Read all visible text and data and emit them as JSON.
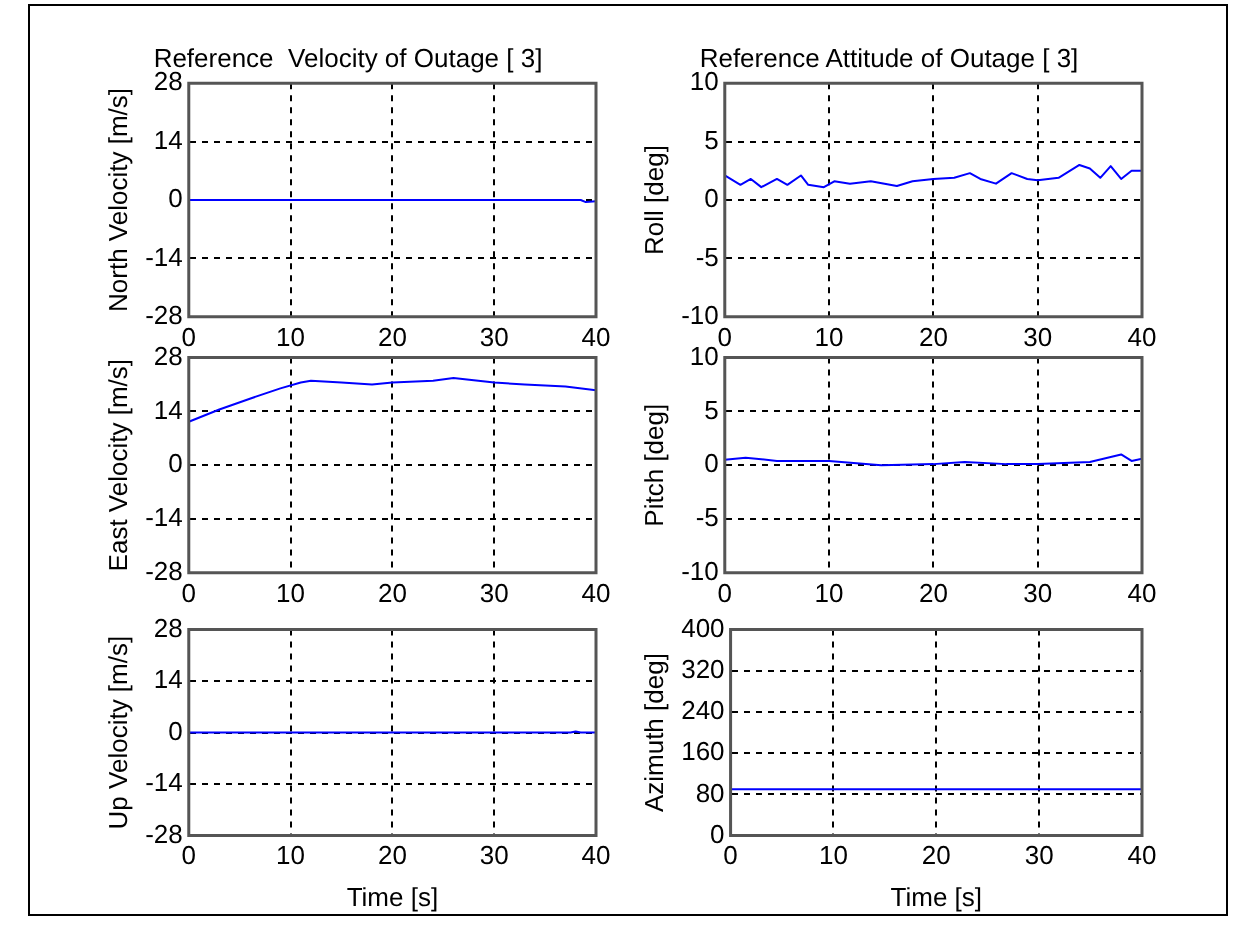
{
  "chart_data": [
    {
      "type": "line",
      "title": "Reference  Velocity of Outage [ 3]",
      "ylabel": "North Velocity [m/s]",
      "x": [
        0,
        10,
        20,
        30,
        38.5,
        39,
        40
      ],
      "series": [
        {
          "color": "#0000ff",
          "values": [
            0,
            0,
            0,
            0,
            0,
            -0.5,
            -0.3
          ]
        }
      ],
      "xlim": [
        0,
        40
      ],
      "xticks": [
        0,
        10,
        20,
        30,
        40
      ],
      "ylim": [
        -28,
        28
      ],
      "yticks": [
        -28,
        -14,
        0,
        14,
        28
      ],
      "grid": true
    },
    {
      "type": "line",
      "title": "Reference Attitude of Outage [ 3]",
      "ylabel": "Roll [deg]",
      "x": [
        0,
        1.5,
        2.5,
        3.5,
        5,
        6,
        7.3,
        8,
        9.5,
        10.5,
        12,
        14,
        16.5,
        18,
        20,
        22,
        23.5,
        24.5,
        26,
        27.5,
        29,
        30,
        32,
        34,
        35,
        36,
        37,
        38,
        39,
        40
      ],
      "series": [
        {
          "color": "#0000ff",
          "values": [
            2.1,
            1.3,
            1.8,
            1.1,
            1.8,
            1.3,
            2.1,
            1.3,
            1.1,
            1.6,
            1.4,
            1.6,
            1.2,
            1.6,
            1.8,
            1.9,
            2.3,
            1.8,
            1.4,
            2.3,
            1.8,
            1.7,
            1.9,
            3.0,
            2.7,
            1.9,
            2.9,
            1.8,
            2.5,
            2.5
          ]
        }
      ],
      "xlim": [
        0,
        40
      ],
      "xticks": [
        0,
        10,
        20,
        30,
        40
      ],
      "ylim": [
        -10,
        10
      ],
      "yticks": [
        -10,
        -5,
        0,
        5,
        10
      ],
      "grid": true
    },
    {
      "type": "line",
      "ylabel": "East Velocity [m/s]",
      "x": [
        0,
        3,
        6,
        9,
        11,
        12,
        15,
        18,
        20,
        24,
        26,
        30,
        33,
        37,
        40
      ],
      "series": [
        {
          "color": "#0000ff",
          "values": [
            11.3,
            14.5,
            17.3,
            20,
            21.5,
            22,
            21.5,
            21,
            21.5,
            22,
            22.7,
            21.5,
            21,
            20.5,
            19.5
          ]
        }
      ],
      "xlim": [
        0,
        40
      ],
      "xticks": [
        0,
        10,
        20,
        30,
        40
      ],
      "ylim": [
        -28,
        28
      ],
      "yticks": [
        -28,
        -14,
        0,
        14,
        28
      ],
      "grid": true
    },
    {
      "type": "line",
      "ylabel": "Pitch [deg]",
      "x": [
        0,
        2,
        5,
        10,
        15,
        20,
        23,
        27,
        30,
        35,
        38,
        39,
        40
      ],
      "series": [
        {
          "color": "#0000ff",
          "values": [
            0.5,
            0.7,
            0.4,
            0.4,
            0,
            0.1,
            0.3,
            0.1,
            0.1,
            0.3,
            1.0,
            0.4,
            0.6
          ]
        }
      ],
      "xlim": [
        0,
        40
      ],
      "xticks": [
        0,
        10,
        20,
        30,
        40
      ],
      "ylim": [
        -10,
        10
      ],
      "yticks": [
        -10,
        -5,
        0,
        5,
        10
      ],
      "grid": true
    },
    {
      "type": "line",
      "xlabel": "Time [s]",
      "ylabel": "Up Velocity [m/s]",
      "x": [
        0,
        10,
        20,
        30,
        37.5,
        38,
        38.5,
        40
      ],
      "series": [
        {
          "color": "#0000ff",
          "values": [
            0,
            0,
            0,
            0,
            0,
            0.3,
            0,
            0
          ]
        }
      ],
      "xlim": [
        0,
        40
      ],
      "xticks": [
        0,
        10,
        20,
        30,
        40
      ],
      "ylim": [
        -28,
        28
      ],
      "yticks": [
        -28,
        -14,
        0,
        14,
        28
      ],
      "grid": true
    },
    {
      "type": "line",
      "xlabel": "Time [s]",
      "ylabel": "Azimuth [deg]",
      "x": [
        0,
        10,
        20,
        30,
        40
      ],
      "series": [
        {
          "color": "#0000ff",
          "values": [
            90,
            90,
            90,
            90,
            90
          ]
        }
      ],
      "xlim": [
        0,
        40
      ],
      "xticks": [
        0,
        10,
        20,
        30,
        40
      ],
      "ylim": [
        0,
        400
      ],
      "yticks": [
        0,
        80,
        160,
        240,
        320,
        400
      ],
      "grid": true
    }
  ]
}
